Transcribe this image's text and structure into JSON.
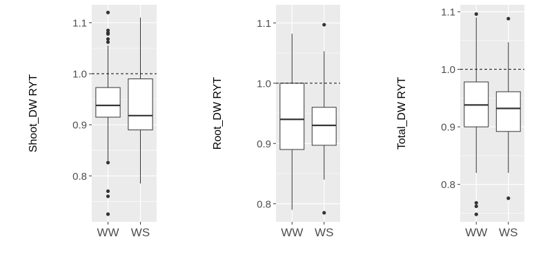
{
  "chart_data": [
    {
      "type": "boxplot",
      "ylabel": "Shoot_DW RYT",
      "categories": [
        "WW",
        "WS"
      ],
      "ylim": [
        0.71,
        1.135
      ],
      "yticks": [
        0.8,
        0.9,
        1.0,
        1.1
      ],
      "ytick_labels": [
        "0.8",
        "0.9",
        "1.0",
        "1.1"
      ],
      "reference_line": 1.0,
      "grid": true,
      "boxes": [
        {
          "category": "WW",
          "whisker_low": 0.83,
          "q1": 0.915,
          "median": 0.938,
          "q3": 0.973,
          "whisker_high": 1.055,
          "outliers": [
            1.12,
            1.085,
            1.08,
            1.078,
            1.068,
            1.062,
            0.826,
            0.77,
            0.76,
            0.725
          ]
        },
        {
          "category": "WS",
          "whisker_low": 0.785,
          "q1": 0.89,
          "median": 0.918,
          "q3": 0.99,
          "whisker_high": 1.11,
          "outliers": []
        }
      ]
    },
    {
      "type": "boxplot",
      "ylabel": "Root_DW RYT",
      "categories": [
        "WW",
        "WS"
      ],
      "ylim": [
        0.77,
        1.13
      ],
      "yticks": [
        0.8,
        0.9,
        1.0,
        1.1
      ],
      "ytick_labels": [
        "0.8",
        "0.9",
        "1.0",
        "1.1"
      ],
      "reference_line": 1.0,
      "grid": true,
      "boxes": [
        {
          "category": "WW",
          "whisker_low": 0.79,
          "q1": 0.89,
          "median": 0.94,
          "q3": 1.0,
          "whisker_high": 1.082,
          "outliers": []
        },
        {
          "category": "WS",
          "whisker_low": 0.84,
          "q1": 0.897,
          "median": 0.93,
          "q3": 0.96,
          "whisker_high": 1.053,
          "outliers": [
            1.097,
            0.785
          ]
        }
      ]
    },
    {
      "type": "boxplot",
      "ylabel": "Total_DW RYT",
      "categories": [
        "WW",
        "WS"
      ],
      "ylim": [
        0.735,
        1.112
      ],
      "yticks": [
        0.8,
        0.9,
        1.0,
        1.1
      ],
      "ytick_labels": [
        "0.8",
        "0.9",
        "1.0",
        "1.1"
      ],
      "reference_line": 1.0,
      "grid": true,
      "boxes": [
        {
          "category": "WW",
          "whisker_low": 0.82,
          "q1": 0.9,
          "median": 0.938,
          "q3": 0.978,
          "whisker_high": 1.09,
          "outliers": [
            1.096,
            0.768,
            0.762,
            0.748
          ]
        },
        {
          "category": "WS",
          "whisker_low": 0.82,
          "q1": 0.892,
          "median": 0.932,
          "q3": 0.961,
          "whisker_high": 1.047,
          "outliers": [
            1.088,
            0.776
          ]
        }
      ]
    }
  ]
}
